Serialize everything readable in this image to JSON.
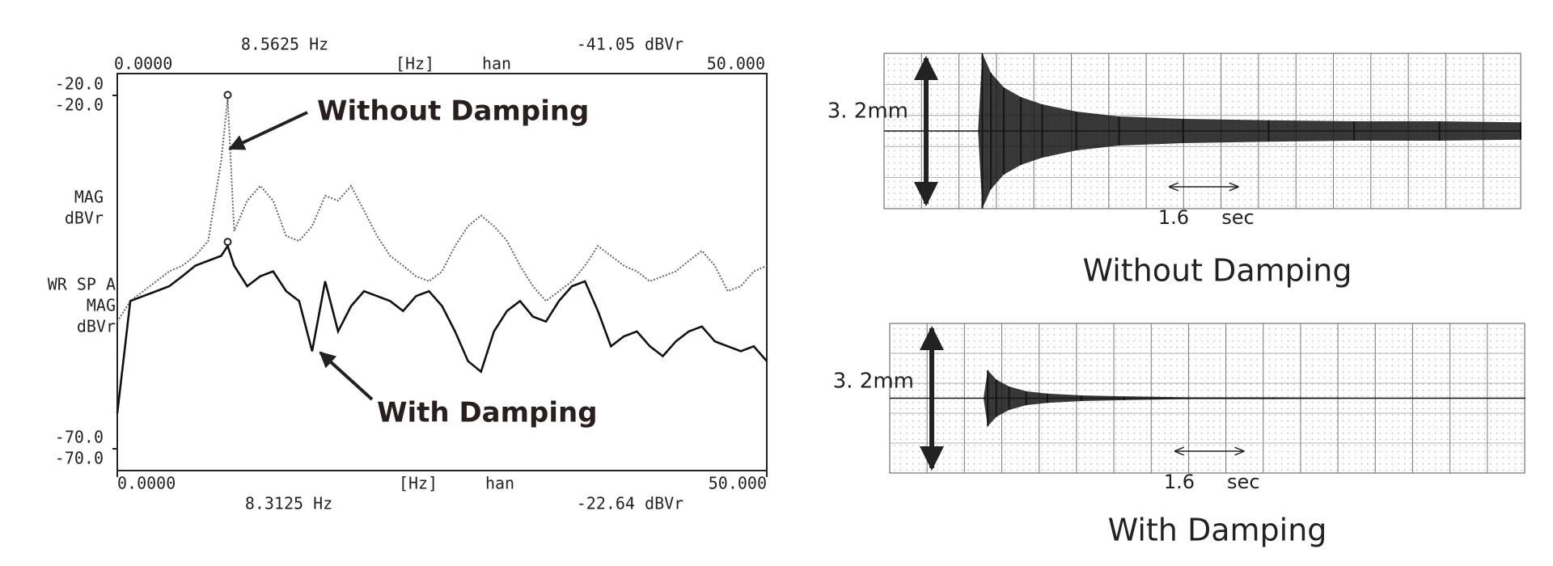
{
  "chart_data": [
    {
      "type": "line",
      "x": [
        0,
        1,
        2,
        3,
        4,
        5,
        6,
        7,
        8,
        8.5,
        9,
        10,
        11,
        12,
        13,
        14,
        15,
        16,
        17,
        18,
        19,
        20,
        21,
        22,
        23,
        24,
        25,
        26,
        27,
        28,
        29,
        30,
        31,
        32,
        33,
        34,
        35,
        36,
        37,
        38,
        39,
        40,
        41,
        42,
        43,
        44,
        45,
        46,
        47,
        48,
        49,
        50
      ],
      "xlim": [
        0,
        50
      ],
      "ylim": [
        -70,
        -20
      ],
      "xticks": [
        {
          "value": 0,
          "label": "0.0000"
        },
        {
          "value": 50,
          "label": "50.000"
        }
      ],
      "yticks": [
        {
          "value": -20,
          "label": "-20.0"
        },
        {
          "value": -70,
          "label": "-70.0"
        }
      ],
      "top_readout": {
        "marker": "8.5625 Hz",
        "unit": "[Hz]",
        "window": "han",
        "level": "-41.05 dBVr"
      },
      "bottom_readout": {
        "marker": "8.3125 Hz",
        "unit": "[Hz]",
        "window": "han",
        "level": "-22.64 dBVr"
      },
      "ylabel": [
        "MAG",
        "dBVr"
      ],
      "ylabel2": [
        "WR SP A",
        "MAG",
        "dBVr"
      ],
      "series": [
        {
          "name": "Without Damping",
          "color": "#666666",
          "dash": true,
          "values": [
            -52,
            -49.1,
            -47.7,
            -46.3,
            -44.9,
            -44.1,
            -42.7,
            -40.6,
            -29.2,
            -20.5,
            -39.2,
            -34.9,
            -32.8,
            -34.9,
            -39.9,
            -40.6,
            -38.5,
            -34.2,
            -34.9,
            -32.8,
            -36.3,
            -39.9,
            -42.7,
            -44.1,
            -45.6,
            -46.3,
            -44.9,
            -41.3,
            -38.5,
            -37,
            -38.5,
            -40.6,
            -44.1,
            -47,
            -49.1,
            -47.7,
            -46.3,
            -44.1,
            -41.3,
            -42.7,
            -44.1,
            -44.9,
            -46.3,
            -45.6,
            -44.9,
            -43.4,
            -42,
            -44.1,
            -47.7,
            -47,
            -44.9,
            -44.1
          ]
        },
        {
          "name": "With Damping",
          "color": "#111111",
          "dash": false,
          "values": [
            -65,
            -49.1,
            -48.4,
            -47.7,
            -47,
            -45.6,
            -44.1,
            -43.4,
            -42.7,
            -41.3,
            -44.1,
            -47,
            -45.6,
            -44.9,
            -47.7,
            -49.1,
            -56.2,
            -46.3,
            -53.4,
            -49.8,
            -47.7,
            -48.4,
            -49.1,
            -50.5,
            -48.4,
            -47.7,
            -49.8,
            -53.4,
            -57.6,
            -59.1,
            -53.4,
            -50.5,
            -49.1,
            -51.3,
            -52,
            -49.1,
            -47,
            -46.3,
            -50.5,
            -55.5,
            -54.1,
            -53.4,
            -55.5,
            -56.9,
            -54.8,
            -53.4,
            -52.7,
            -54.8,
            -55.5,
            -56.2,
            -55.5,
            -57.6
          ]
        }
      ]
    },
    {
      "type": "strip",
      "title": "Without Damping",
      "amplitude_label": "3. 2mm",
      "scale_bar": 1.6,
      "scale_unit": "sec",
      "x": [
        2.2,
        2.3,
        2.5,
        2.8,
        3.2,
        3.7,
        4.5,
        5.5,
        7,
        9,
        11,
        13,
        14.9
      ],
      "values": [
        0,
        1.6,
        1.2,
        0.9,
        0.7,
        0.55,
        0.4,
        0.3,
        0.25,
        0.22,
        0.2,
        0.2,
        0.18
      ],
      "xlim": [
        0,
        14.9
      ],
      "ylim": [
        -1.6,
        1.6
      ],
      "color": "#151515"
    },
    {
      "type": "strip",
      "title": "With Damping",
      "amplitude_label": "3. 2mm",
      "scale_bar": 1.6,
      "scale_unit": "sec",
      "x": [
        2.2,
        2.3,
        2.5,
        2.8,
        3.2,
        3.7,
        4.5,
        5.5,
        7,
        9,
        11,
        13,
        14.9
      ],
      "values": [
        0,
        0.6,
        0.4,
        0.25,
        0.15,
        0.1,
        0.06,
        0.04,
        0.02,
        0.02,
        0.01,
        0.01,
        0.01
      ],
      "xlim": [
        0,
        14.9
      ],
      "ylim": [
        -1.6,
        1.6
      ],
      "color": "#151515"
    }
  ]
}
